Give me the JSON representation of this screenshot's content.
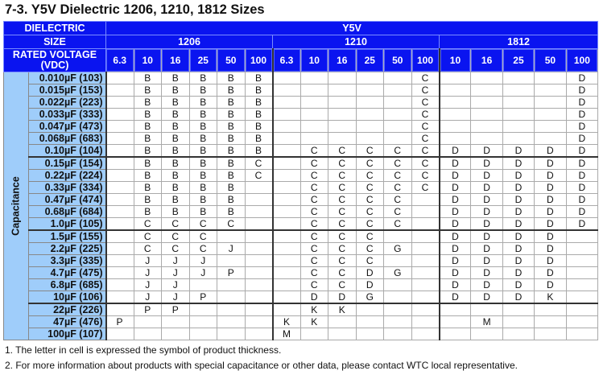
{
  "title": "7-3. Y5V Dielectric 1206, 1210, 1812 Sizes",
  "header": {
    "dielectric_label": "DIELECTRIC",
    "dielectric_value": "Y5V",
    "size_label": "SIZE",
    "sizes": [
      "1206",
      "1210",
      "1812"
    ],
    "voltage_label": "RATED VOLTAGE (VDC)",
    "voltages": [
      [
        "6.3",
        "10",
        "16",
        "25",
        "50",
        "100"
      ],
      [
        "6.3",
        "10",
        "16",
        "25",
        "50",
        "100"
      ],
      [
        "10",
        "16",
        "25",
        "50",
        "100"
      ]
    ]
  },
  "capacitance_label": "Capacitance",
  "rows": [
    {
      "cap": "0.010µF  (103)",
      "cells": [
        "",
        "B",
        "B",
        "B",
        "B",
        "B",
        "",
        "",
        "",
        "",
        "",
        "C",
        "",
        "",
        "",
        "",
        "D"
      ]
    },
    {
      "cap": "0.015µF  (153)",
      "cells": [
        "",
        "B",
        "B",
        "B",
        "B",
        "B",
        "",
        "",
        "",
        "",
        "",
        "C",
        "",
        "",
        "",
        "",
        "D"
      ]
    },
    {
      "cap": "0.022µF  (223)",
      "cells": [
        "",
        "B",
        "B",
        "B",
        "B",
        "B",
        "",
        "",
        "",
        "",
        "",
        "C",
        "",
        "",
        "",
        "",
        "D"
      ]
    },
    {
      "cap": "0.033µF  (333)",
      "cells": [
        "",
        "B",
        "B",
        "B",
        "B",
        "B",
        "",
        "",
        "",
        "",
        "",
        "C",
        "",
        "",
        "",
        "",
        "D"
      ]
    },
    {
      "cap": "0.047µF  (473)",
      "cells": [
        "",
        "B",
        "B",
        "B",
        "B",
        "B",
        "",
        "",
        "",
        "",
        "",
        "C",
        "",
        "",
        "",
        "",
        "D"
      ]
    },
    {
      "cap": "0.068µF  (683)",
      "cells": [
        "",
        "B",
        "B",
        "B",
        "B",
        "B",
        "",
        "",
        "",
        "",
        "",
        "C",
        "",
        "",
        "",
        "",
        "D"
      ]
    },
    {
      "cap": "0.10µF  (104)",
      "cells": [
        "",
        "B",
        "B",
        "B",
        "B",
        "B",
        "",
        "C",
        "C",
        "C",
        "C",
        "C",
        "D",
        "D",
        "D",
        "D",
        "D"
      ]
    },
    {
      "cap": "0.15µF  (154)",
      "cells": [
        "",
        "B",
        "B",
        "B",
        "B",
        "C",
        "",
        "C",
        "C",
        "C",
        "C",
        "C",
        "D",
        "D",
        "D",
        "D",
        "D"
      ]
    },
    {
      "cap": "0.22µF  (224)",
      "cells": [
        "",
        "B",
        "B",
        "B",
        "B",
        "C",
        "",
        "C",
        "C",
        "C",
        "C",
        "C",
        "D",
        "D",
        "D",
        "D",
        "D"
      ]
    },
    {
      "cap": "0.33µF  (334)",
      "cells": [
        "",
        "B",
        "B",
        "B",
        "B",
        "",
        "",
        "C",
        "C",
        "C",
        "C",
        "C",
        "D",
        "D",
        "D",
        "D",
        "D"
      ]
    },
    {
      "cap": "0.47µF  (474)",
      "cells": [
        "",
        "B",
        "B",
        "B",
        "B",
        "",
        "",
        "C",
        "C",
        "C",
        "C",
        "",
        "D",
        "D",
        "D",
        "D",
        "D"
      ]
    },
    {
      "cap": "0.68µF  (684)",
      "cells": [
        "",
        "B",
        "B",
        "B",
        "B",
        "",
        "",
        "C",
        "C",
        "C",
        "C",
        "",
        "D",
        "D",
        "D",
        "D",
        "D"
      ]
    },
    {
      "cap": "1.0µF  (105)",
      "cells": [
        "",
        "C",
        "C",
        "C",
        "C",
        "",
        "",
        "C",
        "C",
        "C",
        "C",
        "",
        "D",
        "D",
        "D",
        "D",
        "D"
      ]
    },
    {
      "cap": "1.5µF  (155)",
      "cells": [
        "",
        "C",
        "C",
        "C",
        "",
        "",
        "",
        "C",
        "C",
        "C",
        "",
        "",
        "D",
        "D",
        "D",
        "D",
        ""
      ]
    },
    {
      "cap": "2.2µF  (225)",
      "cells": [
        "",
        "C",
        "C",
        "C",
        "J",
        "",
        "",
        "C",
        "C",
        "C",
        "G",
        "",
        "D",
        "D",
        "D",
        "D",
        ""
      ]
    },
    {
      "cap": "3.3µF  (335)",
      "cells": [
        "",
        "J",
        "J",
        "J",
        "",
        "",
        "",
        "C",
        "C",
        "C",
        "",
        "",
        "D",
        "D",
        "D",
        "D",
        ""
      ]
    },
    {
      "cap": "4.7µF  (475)",
      "cells": [
        "",
        "J",
        "J",
        "J",
        "P",
        "",
        "",
        "C",
        "C",
        "D",
        "G",
        "",
        "D",
        "D",
        "D",
        "D",
        ""
      ]
    },
    {
      "cap": "6.8µF  (685)",
      "cells": [
        "",
        "J",
        "J",
        "",
        "",
        "",
        "",
        "C",
        "C",
        "D",
        "",
        "",
        "D",
        "D",
        "D",
        "D",
        ""
      ]
    },
    {
      "cap": "10µF  (106)",
      "cells": [
        "",
        "J",
        "J",
        "P",
        "",
        "",
        "",
        "D",
        "D",
        "G",
        "",
        "",
        "D",
        "D",
        "D",
        "K",
        ""
      ]
    },
    {
      "cap": "22µF  (226)",
      "cells": [
        "",
        "P",
        "P",
        "",
        "",
        "",
        "",
        "K",
        "K",
        "",
        "",
        "",
        "",
        "",
        "",
        "",
        ""
      ]
    },
    {
      "cap": "47µF  (476)",
      "cells": [
        "P",
        "",
        "",
        "",
        "",
        "",
        "K",
        "K",
        "",
        "",
        "",
        "",
        "",
        "M",
        "",
        "",
        ""
      ]
    },
    {
      "cap": "100µF  (107)",
      "cells": [
        "",
        "",
        "",
        "",
        "",
        "",
        "M",
        "",
        "",
        "",
        "",
        "",
        "",
        "",
        "",
        "",
        ""
      ]
    }
  ],
  "notes": [
    "1. The letter in cell is expressed the symbol of product thickness.",
    "2. For more information about products with special capacitance or other data, please contact WTC local representative."
  ],
  "colors": {
    "header_blue": "#0a14f0",
    "label_blue": "#9fcdfa"
  }
}
